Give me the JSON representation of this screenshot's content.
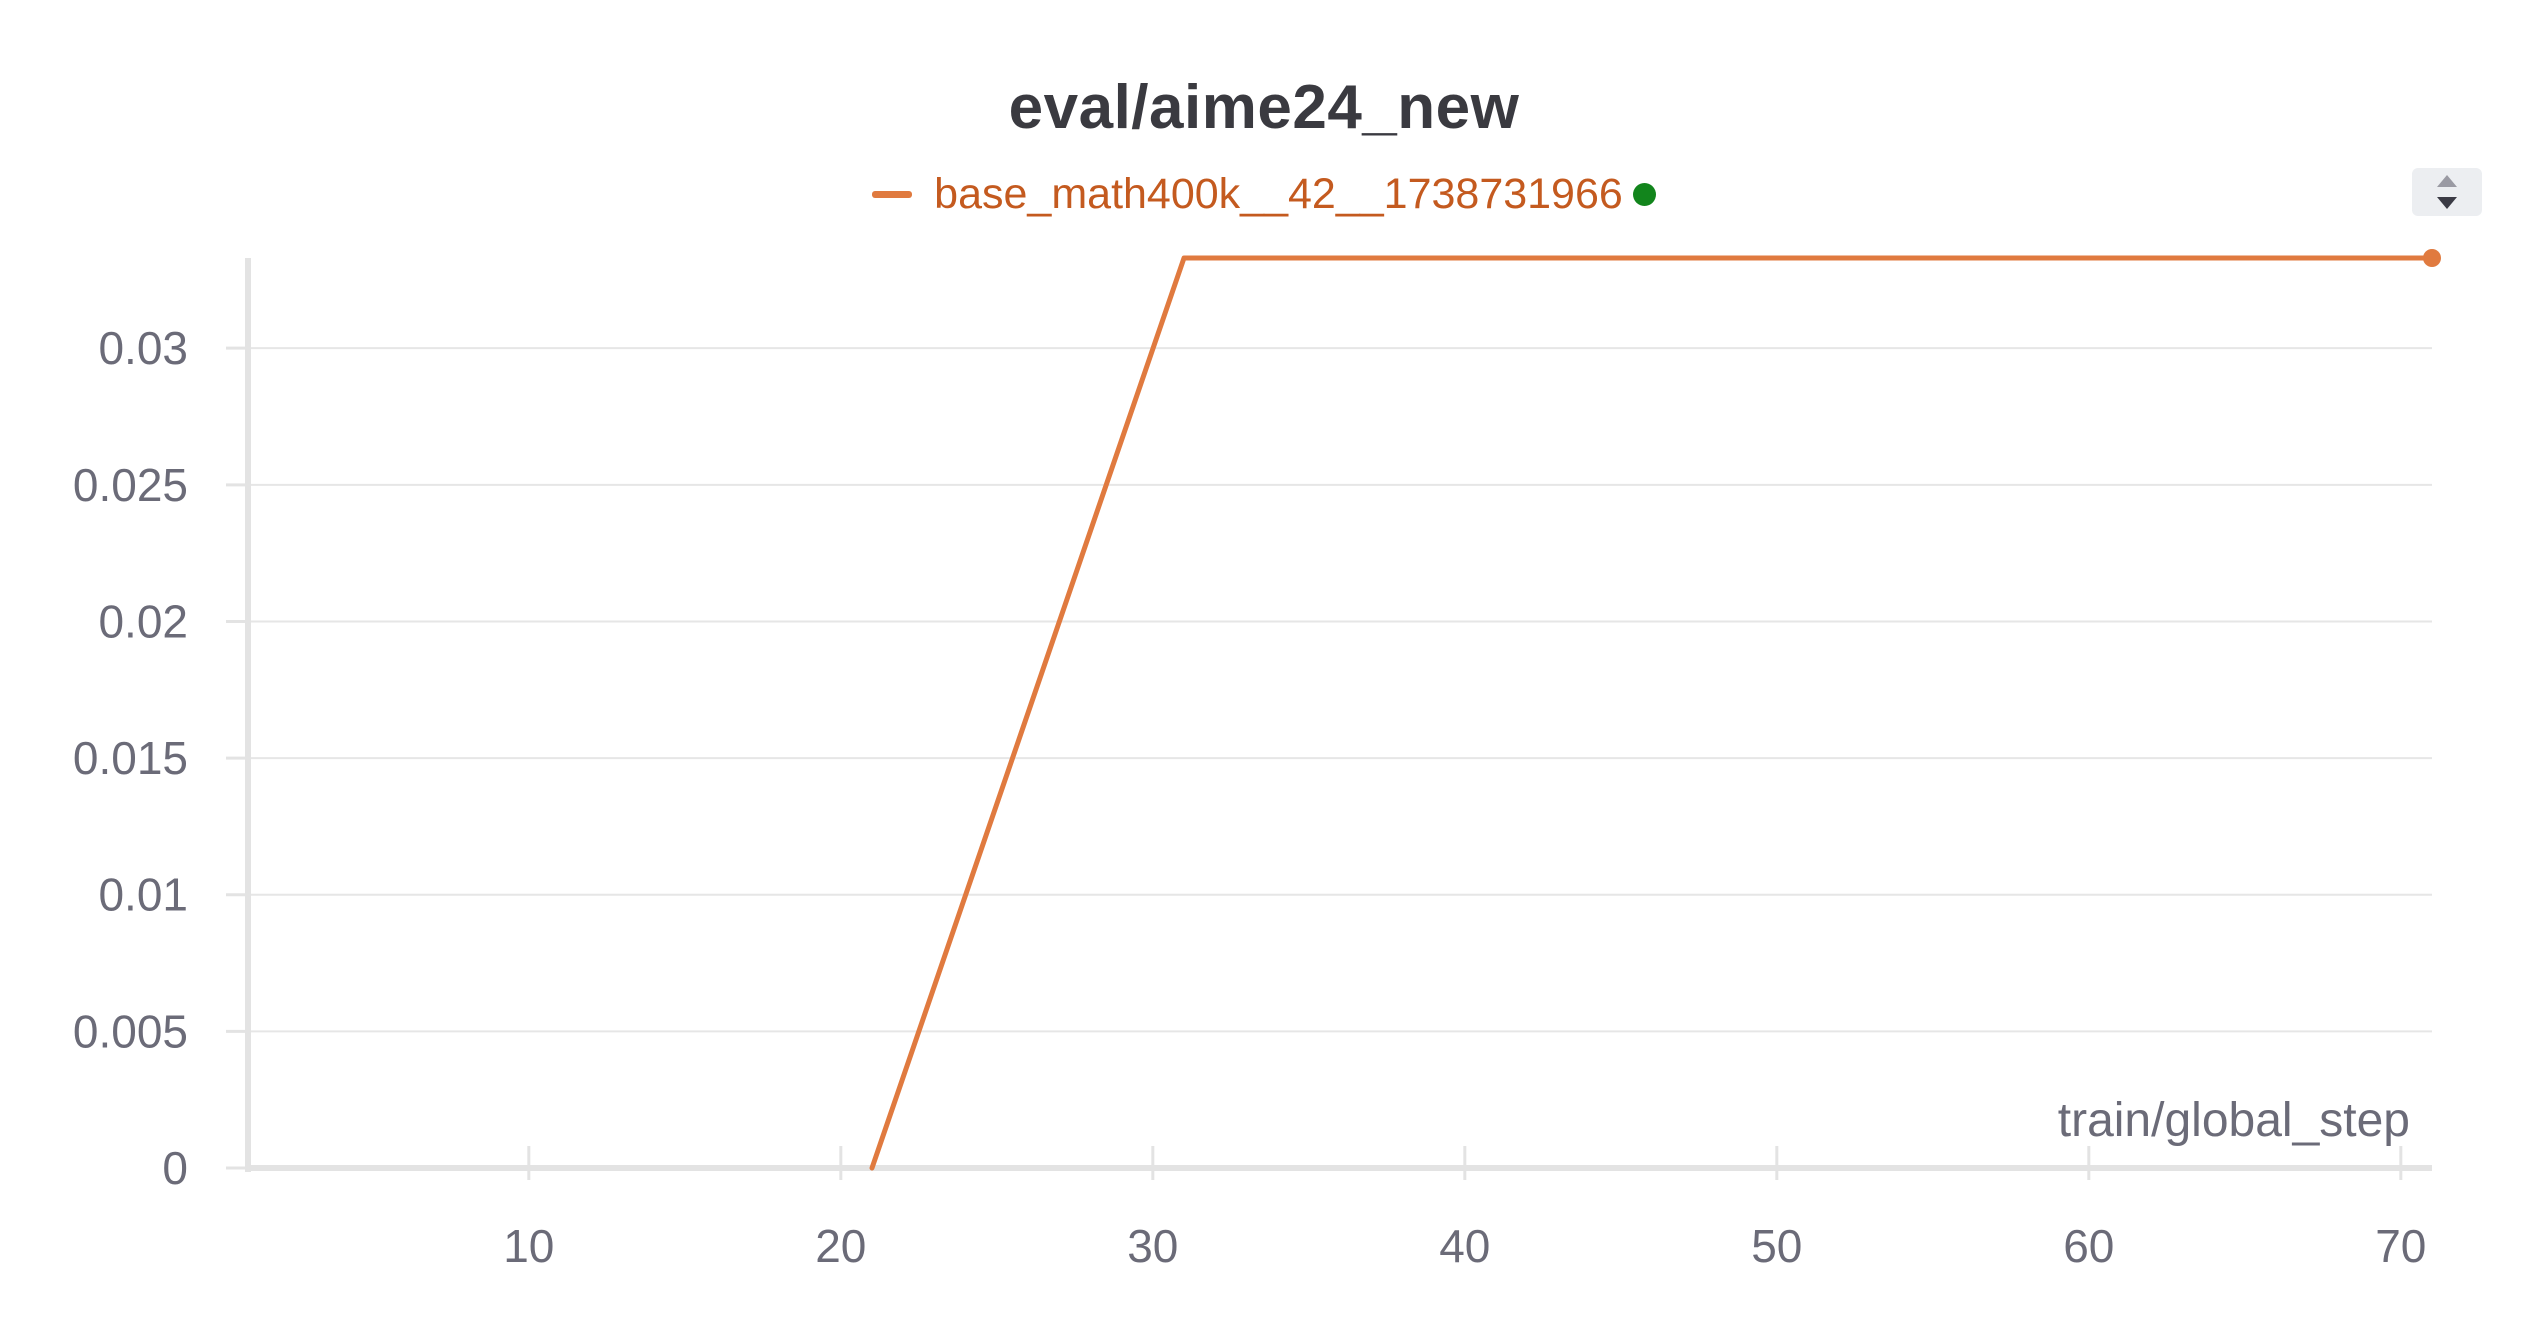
{
  "colors": {
    "series": "#e07a3f",
    "legend_text": "#c45a1f",
    "status_dot": "#12851c",
    "grid": "#e6e6e6",
    "axis": "#e3e3e3",
    "tick_text": "#6b6b78"
  },
  "legend_scroller_icon": "up-down-arrows-icon",
  "chart_data": {
    "type": "line",
    "title": "eval/aime24_new",
    "xlabel": "train/global_step",
    "ylabel": "",
    "xlim": [
      1,
      71
    ],
    "ylim": [
      0,
      0.0333
    ],
    "x_ticks": [
      10,
      20,
      30,
      40,
      50,
      60,
      70
    ],
    "y_ticks": [
      0,
      0.005,
      0.01,
      0.015,
      0.02,
      0.025,
      0.03
    ],
    "y_tick_labels": [
      "0",
      "0.005",
      "0.01",
      "0.015",
      "0.02",
      "0.025",
      "0.03"
    ],
    "grid": true,
    "legend_position": "top-center",
    "series": [
      {
        "name": "base_math400k__42__1738731966",
        "color": "#e07a3f",
        "x": [
          21,
          31,
          71
        ],
        "y": [
          0,
          0.0333,
          0.0333
        ]
      }
    ]
  }
}
